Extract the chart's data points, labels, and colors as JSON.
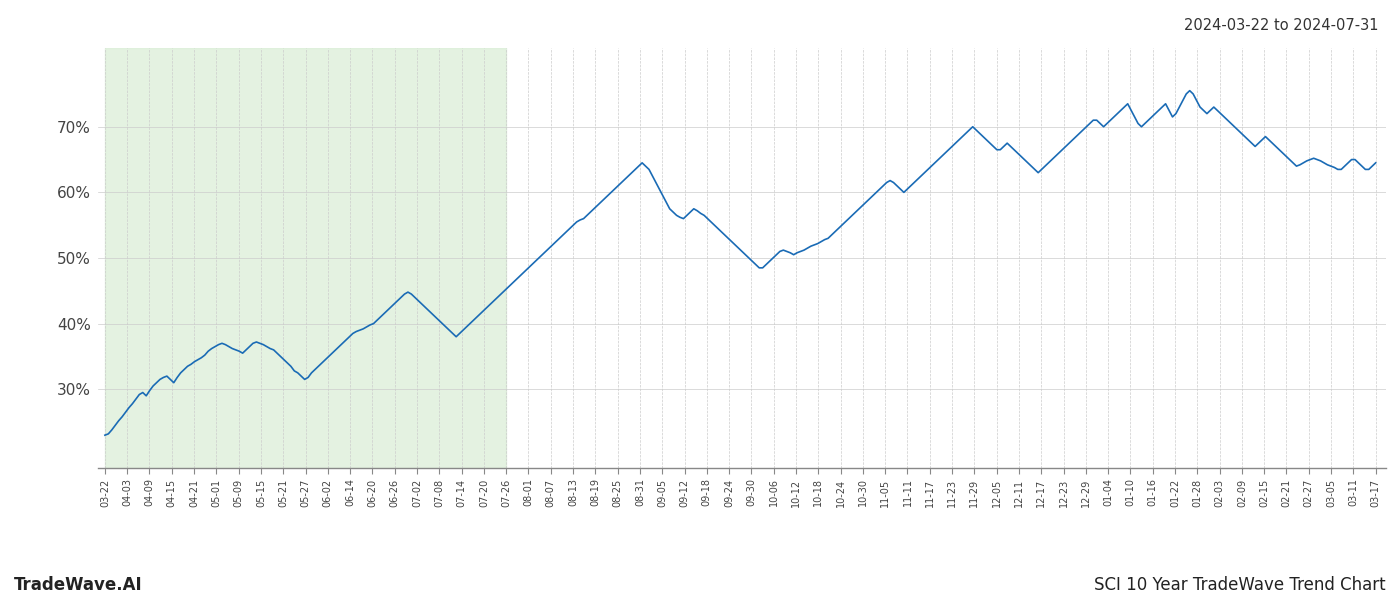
{
  "title_top_right": "2024-03-22 to 2024-07-31",
  "bottom_left": "TradeWave.AI",
  "bottom_right": "SCI 10 Year TradeWave Trend Chart",
  "background_color": "#ffffff",
  "line_color": "#1a6bb5",
  "shade_color": "#d6ecd2",
  "shade_alpha": 0.65,
  "ylim": [
    18,
    82
  ],
  "yticks": [
    30,
    40,
    50,
    60,
    70
  ],
  "x_labels": [
    "03-22",
    "04-03",
    "04-09",
    "04-15",
    "04-21",
    "05-01",
    "05-09",
    "05-15",
    "05-21",
    "05-27",
    "06-02",
    "06-14",
    "06-20",
    "06-26",
    "07-02",
    "07-08",
    "07-14",
    "07-20",
    "07-26",
    "08-01",
    "08-07",
    "08-13",
    "08-19",
    "08-25",
    "08-31",
    "09-05",
    "09-12",
    "09-18",
    "09-24",
    "09-30",
    "10-06",
    "10-12",
    "10-18",
    "10-24",
    "10-30",
    "11-05",
    "11-11",
    "11-17",
    "11-23",
    "11-29",
    "12-05",
    "12-11",
    "12-17",
    "12-23",
    "12-29",
    "01-04",
    "01-10",
    "01-16",
    "01-22",
    "01-28",
    "02-03",
    "02-09",
    "02-15",
    "02-21",
    "02-27",
    "03-05",
    "03-11",
    "03-17"
  ],
  "shade_start_label": "03-22",
  "shade_end_label": "07-26",
  "y_values": [
    23.0,
    23.2,
    23.8,
    24.5,
    25.2,
    25.8,
    26.5,
    27.2,
    27.8,
    28.5,
    29.2,
    29.5,
    29.0,
    29.8,
    30.5,
    31.0,
    31.5,
    31.8,
    32.0,
    31.5,
    31.0,
    31.8,
    32.5,
    33.0,
    33.5,
    33.8,
    34.2,
    34.5,
    34.8,
    35.2,
    35.8,
    36.2,
    36.5,
    36.8,
    37.0,
    36.8,
    36.5,
    36.2,
    36.0,
    35.8,
    35.5,
    36.0,
    36.5,
    37.0,
    37.2,
    37.0,
    36.8,
    36.5,
    36.2,
    36.0,
    35.5,
    35.0,
    34.5,
    34.0,
    33.5,
    32.8,
    32.5,
    32.0,
    31.5,
    31.8,
    32.5,
    33.0,
    33.5,
    34.0,
    34.5,
    35.0,
    35.5,
    36.0,
    36.5,
    37.0,
    37.5,
    38.0,
    38.5,
    38.8,
    39.0,
    39.2,
    39.5,
    39.8,
    40.0,
    40.5,
    41.0,
    41.5,
    42.0,
    42.5,
    43.0,
    43.5,
    44.0,
    44.5,
    44.8,
    44.5,
    44.0,
    43.5,
    43.0,
    42.5,
    42.0,
    41.5,
    41.0,
    40.5,
    40.0,
    39.5,
    39.0,
    38.5,
    38.0,
    38.5,
    39.0,
    39.5,
    40.0,
    40.5,
    41.0,
    41.5,
    42.0,
    42.5,
    43.0,
    43.5,
    44.0,
    44.5,
    45.0,
    45.5,
    46.0,
    46.5,
    47.0,
    47.5,
    48.0,
    48.5,
    49.0,
    49.5,
    50.0,
    50.5,
    51.0,
    51.5,
    52.0,
    52.5,
    53.0,
    53.5,
    54.0,
    54.5,
    55.0,
    55.5,
    55.8,
    56.0,
    56.5,
    57.0,
    57.5,
    58.0,
    58.5,
    59.0,
    59.5,
    60.0,
    60.5,
    61.0,
    61.5,
    62.0,
    62.5,
    63.0,
    63.5,
    64.0,
    64.5,
    64.0,
    63.5,
    62.5,
    61.5,
    60.5,
    59.5,
    58.5,
    57.5,
    57.0,
    56.5,
    56.2,
    56.0,
    56.5,
    57.0,
    57.5,
    57.2,
    56.8,
    56.5,
    56.0,
    55.5,
    55.0,
    54.5,
    54.0,
    53.5,
    53.0,
    52.5,
    52.0,
    51.5,
    51.0,
    50.5,
    50.0,
    49.5,
    49.0,
    48.5,
    48.5,
    49.0,
    49.5,
    50.0,
    50.5,
    51.0,
    51.2,
    51.0,
    50.8,
    50.5,
    50.8,
    51.0,
    51.2,
    51.5,
    51.8,
    52.0,
    52.2,
    52.5,
    52.8,
    53.0,
    53.5,
    54.0,
    54.5,
    55.0,
    55.5,
    56.0,
    56.5,
    57.0,
    57.5,
    58.0,
    58.5,
    59.0,
    59.5,
    60.0,
    60.5,
    61.0,
    61.5,
    61.8,
    61.5,
    61.0,
    60.5,
    60.0,
    60.5,
    61.0,
    61.5,
    62.0,
    62.5,
    63.0,
    63.5,
    64.0,
    64.5,
    65.0,
    65.5,
    66.0,
    66.5,
    67.0,
    67.5,
    68.0,
    68.5,
    69.0,
    69.5,
    70.0,
    69.5,
    69.0,
    68.5,
    68.0,
    67.5,
    67.0,
    66.5,
    66.5,
    67.0,
    67.5,
    67.0,
    66.5,
    66.0,
    65.5,
    65.0,
    64.5,
    64.0,
    63.5,
    63.0,
    63.5,
    64.0,
    64.5,
    65.0,
    65.5,
    66.0,
    66.5,
    67.0,
    67.5,
    68.0,
    68.5,
    69.0,
    69.5,
    70.0,
    70.5,
    71.0,
    71.0,
    70.5,
    70.0,
    70.5,
    71.0,
    71.5,
    72.0,
    72.5,
    73.0,
    73.5,
    72.5,
    71.5,
    70.5,
    70.0,
    70.5,
    71.0,
    71.5,
    72.0,
    72.5,
    73.0,
    73.5,
    72.5,
    71.5,
    72.0,
    73.0,
    74.0,
    75.0,
    75.5,
    75.0,
    74.0,
    73.0,
    72.5,
    72.0,
    72.5,
    73.0,
    72.5,
    72.0,
    71.5,
    71.0,
    70.5,
    70.0,
    69.5,
    69.0,
    68.5,
    68.0,
    67.5,
    67.0,
    67.5,
    68.0,
    68.5,
    68.0,
    67.5,
    67.0,
    66.5,
    66.0,
    65.5,
    65.0,
    64.5,
    64.0,
    64.2,
    64.5,
    64.8,
    65.0,
    65.2,
    65.0,
    64.8,
    64.5,
    64.2,
    64.0,
    63.8,
    63.5,
    63.5,
    64.0,
    64.5,
    65.0,
    65.0,
    64.5,
    64.0,
    63.5,
    63.5,
    64.0,
    64.5
  ]
}
